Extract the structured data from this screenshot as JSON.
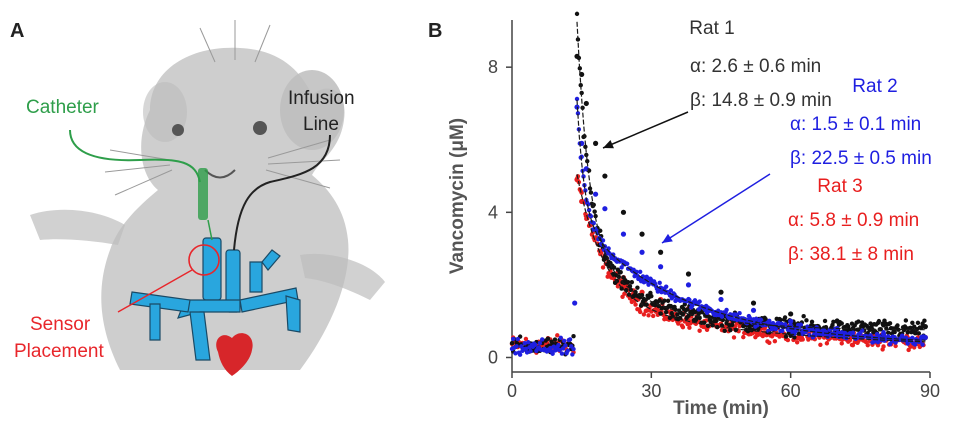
{
  "panels": {
    "a": {
      "letter": "A",
      "labels": {
        "catheter": "Catheter",
        "infusion_line": [
          "Infusion",
          "Line"
        ],
        "sensor_placement": [
          "Sensor",
          "Placement"
        ]
      },
      "colors": {
        "catheter": "#2e9e4a",
        "sensor": "#e8262b",
        "vessels": "#29a6de",
        "heart": "#d7262a",
        "rat": "#bdbdbd",
        "line": "#222222"
      },
      "icons": [
        "rat-illustration",
        "blood-vessel-tree",
        "heart-icon",
        "catheter-tube",
        "infusion-line-tube",
        "sensor-circle"
      ]
    },
    "b": {
      "letter": "B"
    }
  },
  "chart_data": {
    "type": "scatter",
    "xlabel": "Time (min)",
    "ylabel": "Vancomycin (μM)",
    "xlim": [
      0,
      90
    ],
    "ylim": [
      -0.4,
      9.3
    ],
    "xticks": [
      0,
      30,
      60,
      90
    ],
    "yticks": [
      0,
      4,
      8
    ],
    "grid": false,
    "infusion_time_min": 14,
    "series": [
      {
        "name": "Rat 1",
        "color": "#111111",
        "label_color": "#333333",
        "annotation": [
          "α: 2.6 ± 0.6 min",
          "β: 14.8 ± 0.9 min"
        ],
        "baseline": 0.3,
        "fit": {
          "A": 6.2,
          "alpha_min": 2.6,
          "B": 2.3,
          "beta_min": 14.8,
          "C": 0.75
        },
        "noise": 0.35,
        "points": [
          [
            14,
            8.3
          ],
          [
            15,
            7.8
          ],
          [
            16,
            7.0
          ],
          [
            18,
            5.9
          ],
          [
            20,
            5.0
          ],
          [
            24,
            4.0
          ],
          [
            28,
            3.4
          ],
          [
            32,
            2.9
          ],
          [
            38,
            2.3
          ],
          [
            45,
            1.8
          ],
          [
            52,
            1.5
          ],
          [
            60,
            1.2
          ],
          [
            70,
            1.0
          ],
          [
            80,
            0.9
          ],
          [
            89,
            0.85
          ]
        ]
      },
      {
        "name": "Rat 2",
        "color": "#1f1fe0",
        "label_color": "#1f1fe0",
        "annotation": [
          "α: 1.5 ± 0.1 min",
          "β: 22.5 ± 0.5 min"
        ],
        "baseline": 0.25,
        "fit": {
          "A": 3.3,
          "alpha_min": 1.5,
          "B": 3.45,
          "beta_min": 22.5,
          "C": 0.35
        },
        "noise": 0.2,
        "points": [
          [
            13.5,
            1.5
          ],
          [
            14,
            6.9
          ],
          [
            15,
            5.9
          ],
          [
            16,
            5.2
          ],
          [
            18,
            4.5
          ],
          [
            20,
            4.1
          ],
          [
            24,
            3.4
          ],
          [
            28,
            2.9
          ],
          [
            32,
            2.5
          ],
          [
            38,
            2.0
          ],
          [
            45,
            1.6
          ],
          [
            52,
            1.3
          ],
          [
            60,
            1.0
          ],
          [
            70,
            0.8
          ],
          [
            80,
            0.65
          ],
          [
            89,
            0.55
          ]
        ]
      },
      {
        "name": "Rat 3",
        "color": "#e81f1f",
        "label_color": "#e81f1f",
        "annotation": [
          "α: 5.8 ± 0.9 min",
          "β: 38.1 ± 8 min"
        ],
        "baseline": 0.35,
        "fit": {
          "A": 3.5,
          "alpha_min": 5.8,
          "B": 1.3,
          "beta_min": 38.1,
          "C": 0.25
        },
        "noise": 0.3,
        "points": [
          [
            14,
            4.9
          ],
          [
            15,
            4.3
          ],
          [
            16,
            3.9
          ],
          [
            18,
            3.3
          ],
          [
            20,
            2.8
          ],
          [
            24,
            2.2
          ],
          [
            28,
            1.8
          ],
          [
            32,
            1.6
          ],
          [
            38,
            1.35
          ],
          [
            45,
            1.15
          ],
          [
            52,
            1.0
          ],
          [
            60,
            0.85
          ],
          [
            70,
            0.7
          ],
          [
            80,
            0.6
          ],
          [
            89,
            0.55
          ]
        ]
      }
    ]
  }
}
